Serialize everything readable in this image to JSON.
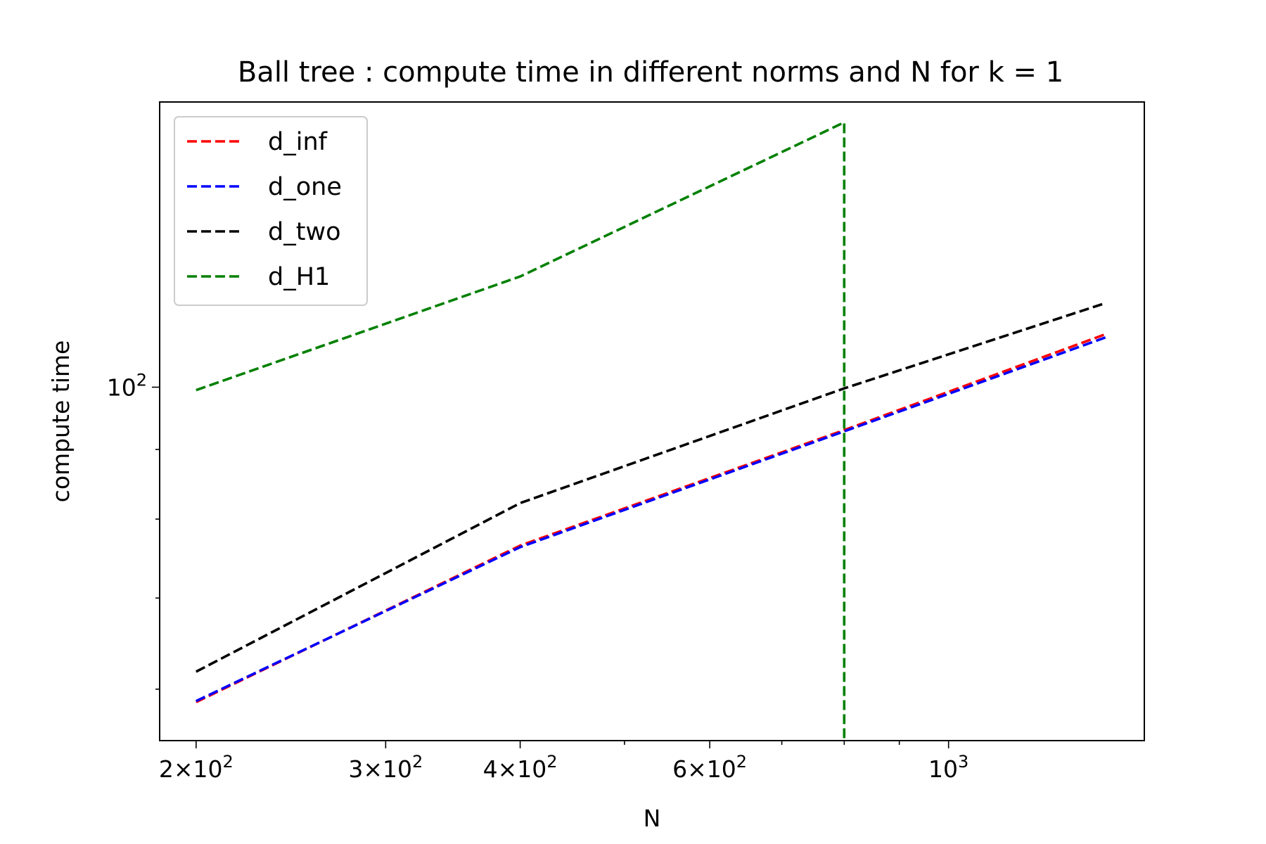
{
  "chart_data": {
    "type": "line",
    "title": "Ball tree : compute time in different norms and N for k = 1",
    "xlabel": "N",
    "ylabel": "compute time",
    "xscale": "log",
    "yscale": "log",
    "xlim": [
      185,
      1520
    ],
    "ylim": [
      55,
      162
    ],
    "x": [
      200,
      400,
      800,
      1400
    ],
    "line_style": "dashed",
    "grid": false,
    "legend_position": "top-left",
    "series": [
      {
        "name": "d_inf",
        "color": "#ff0000",
        "values": [
          58.7,
          76.5,
          93.0,
          109.4
        ]
      },
      {
        "name": "d_one",
        "color": "#0000ff",
        "values": [
          58.8,
          76.3,
          92.8,
          108.8
        ]
      },
      {
        "name": "d_two",
        "color": "#000000",
        "values": [
          61.8,
          82.2,
          99.8,
          115.3
        ]
      },
      {
        "name": "d_H1",
        "color": "#008000",
        "values": [
          99.5,
          120.6,
          156.5,
          null
        ],
        "drop_at_x": 800
      }
    ],
    "x_ticks": [
      {
        "value": 200,
        "mantissa": "2",
        "base": "10",
        "exp": "2"
      },
      {
        "value": 300,
        "mantissa": "3",
        "base": "10",
        "exp": "2"
      },
      {
        "value": 400,
        "mantissa": "4",
        "base": "10",
        "exp": "2"
      },
      {
        "value": 600,
        "mantissa": "6",
        "base": "10",
        "exp": "2"
      },
      {
        "value": 1000,
        "mantissa": "",
        "base": "10",
        "exp": "3"
      }
    ],
    "x_minor_ticks": [
      500,
      700,
      800,
      900
    ],
    "y_ticks": [
      {
        "value": 100,
        "base": "10",
        "exp": "2"
      }
    ],
    "y_minor_ticks": [
      60,
      70,
      80,
      90,
      200
    ]
  }
}
